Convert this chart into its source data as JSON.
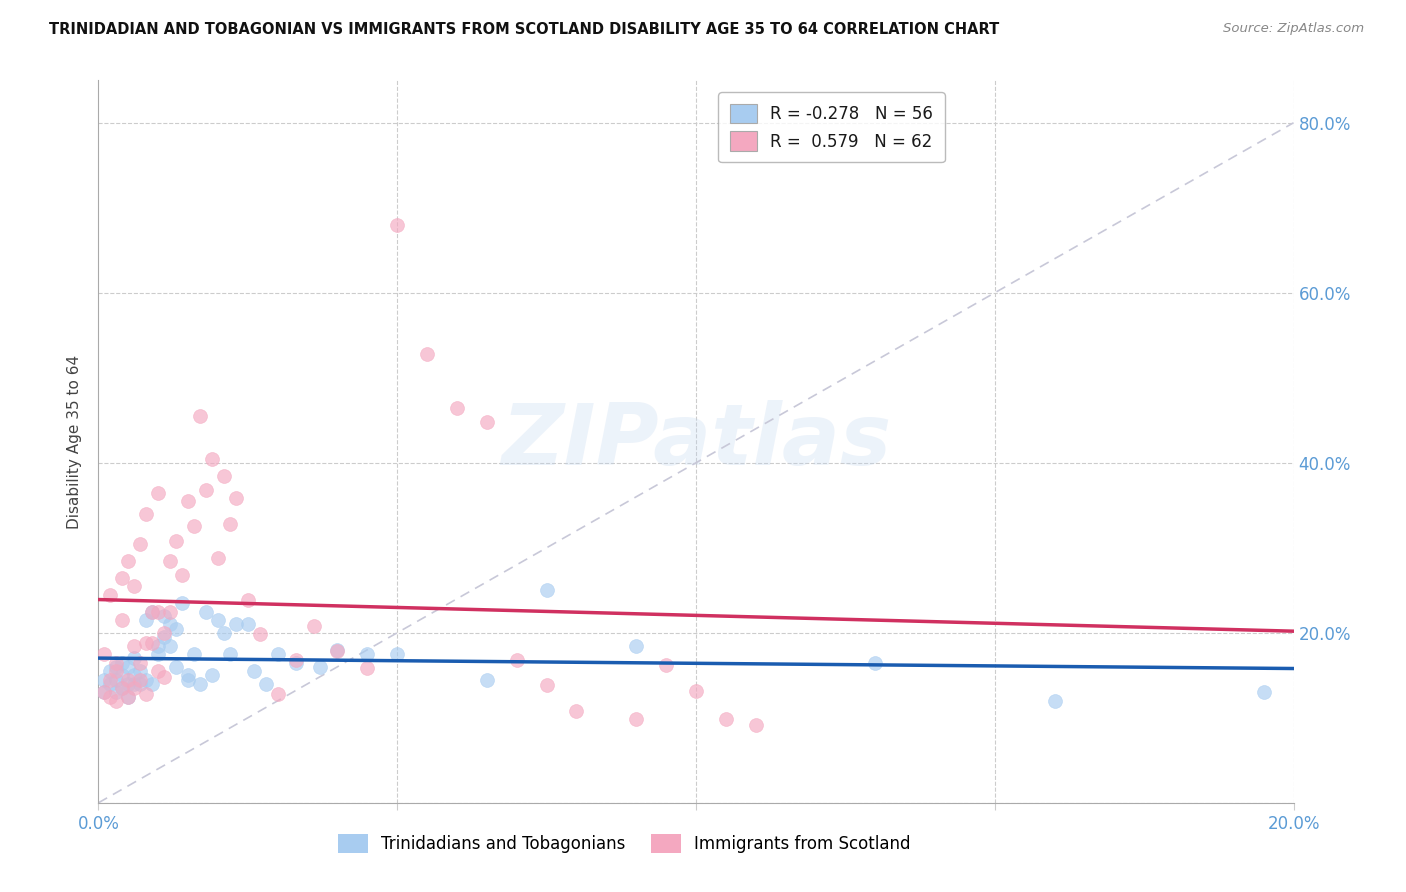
{
  "title": "TRINIDADIAN AND TOBAGONIAN VS IMMIGRANTS FROM SCOTLAND DISABILITY AGE 35 TO 64 CORRELATION CHART",
  "source": "Source: ZipAtlas.com",
  "ylabel": "Disability Age 35 to 64",
  "xlim": [
    0.0,
    0.2
  ],
  "ylim": [
    0.0,
    0.85
  ],
  "watermark": "ZIPatlas",
  "blue_color": "#A8CCF0",
  "pink_color": "#F4A8C0",
  "blue_line_color": "#1A5CB0",
  "pink_line_color": "#D03060",
  "diagonal_color": "#C8C8D8",
  "R_blue": -0.278,
  "N_blue": 56,
  "R_pink": 0.579,
  "N_pink": 62,
  "legend_label_blue": "Trinidadians and Tobagonians",
  "legend_label_pink": "Immigrants from Scotland",
  "blue_scatter_x": [
    0.001,
    0.001,
    0.002,
    0.002,
    0.003,
    0.003,
    0.003,
    0.004,
    0.004,
    0.004,
    0.005,
    0.005,
    0.005,
    0.006,
    0.006,
    0.006,
    0.007,
    0.007,
    0.008,
    0.008,
    0.009,
    0.009,
    0.01,
    0.01,
    0.011,
    0.011,
    0.012,
    0.012,
    0.013,
    0.013,
    0.014,
    0.015,
    0.015,
    0.016,
    0.017,
    0.018,
    0.019,
    0.02,
    0.021,
    0.022,
    0.023,
    0.025,
    0.026,
    0.028,
    0.03,
    0.033,
    0.037,
    0.04,
    0.045,
    0.05,
    0.065,
    0.075,
    0.09,
    0.13,
    0.16,
    0.195
  ],
  "blue_scatter_y": [
    0.145,
    0.13,
    0.155,
    0.14,
    0.16,
    0.145,
    0.13,
    0.15,
    0.135,
    0.165,
    0.14,
    0.16,
    0.125,
    0.15,
    0.17,
    0.14,
    0.155,
    0.14,
    0.215,
    0.145,
    0.225,
    0.14,
    0.185,
    0.175,
    0.195,
    0.22,
    0.185,
    0.21,
    0.16,
    0.205,
    0.235,
    0.15,
    0.145,
    0.175,
    0.14,
    0.225,
    0.15,
    0.215,
    0.2,
    0.175,
    0.21,
    0.21,
    0.155,
    0.14,
    0.175,
    0.165,
    0.16,
    0.18,
    0.175,
    0.175,
    0.145,
    0.25,
    0.185,
    0.165,
    0.12,
    0.13
  ],
  "pink_scatter_x": [
    0.001,
    0.001,
    0.002,
    0.002,
    0.002,
    0.003,
    0.003,
    0.003,
    0.004,
    0.004,
    0.004,
    0.005,
    0.005,
    0.005,
    0.006,
    0.006,
    0.006,
    0.007,
    0.007,
    0.007,
    0.008,
    0.008,
    0.008,
    0.009,
    0.009,
    0.01,
    0.01,
    0.01,
    0.011,
    0.011,
    0.012,
    0.012,
    0.013,
    0.014,
    0.015,
    0.016,
    0.017,
    0.018,
    0.019,
    0.02,
    0.021,
    0.022,
    0.023,
    0.025,
    0.027,
    0.03,
    0.033,
    0.036,
    0.04,
    0.045,
    0.05,
    0.055,
    0.06,
    0.065,
    0.07,
    0.075,
    0.08,
    0.09,
    0.095,
    0.1,
    0.105,
    0.11
  ],
  "pink_scatter_y": [
    0.13,
    0.175,
    0.245,
    0.145,
    0.125,
    0.165,
    0.155,
    0.12,
    0.265,
    0.215,
    0.135,
    0.285,
    0.145,
    0.125,
    0.185,
    0.255,
    0.135,
    0.305,
    0.145,
    0.165,
    0.34,
    0.128,
    0.188,
    0.225,
    0.188,
    0.365,
    0.155,
    0.225,
    0.2,
    0.148,
    0.285,
    0.225,
    0.308,
    0.268,
    0.355,
    0.326,
    0.455,
    0.368,
    0.405,
    0.288,
    0.385,
    0.328,
    0.358,
    0.238,
    0.198,
    0.128,
    0.168,
    0.208,
    0.178,
    0.158,
    0.68,
    0.528,
    0.465,
    0.448,
    0.168,
    0.138,
    0.108,
    0.098,
    0.162,
    0.132,
    0.098,
    0.092
  ]
}
